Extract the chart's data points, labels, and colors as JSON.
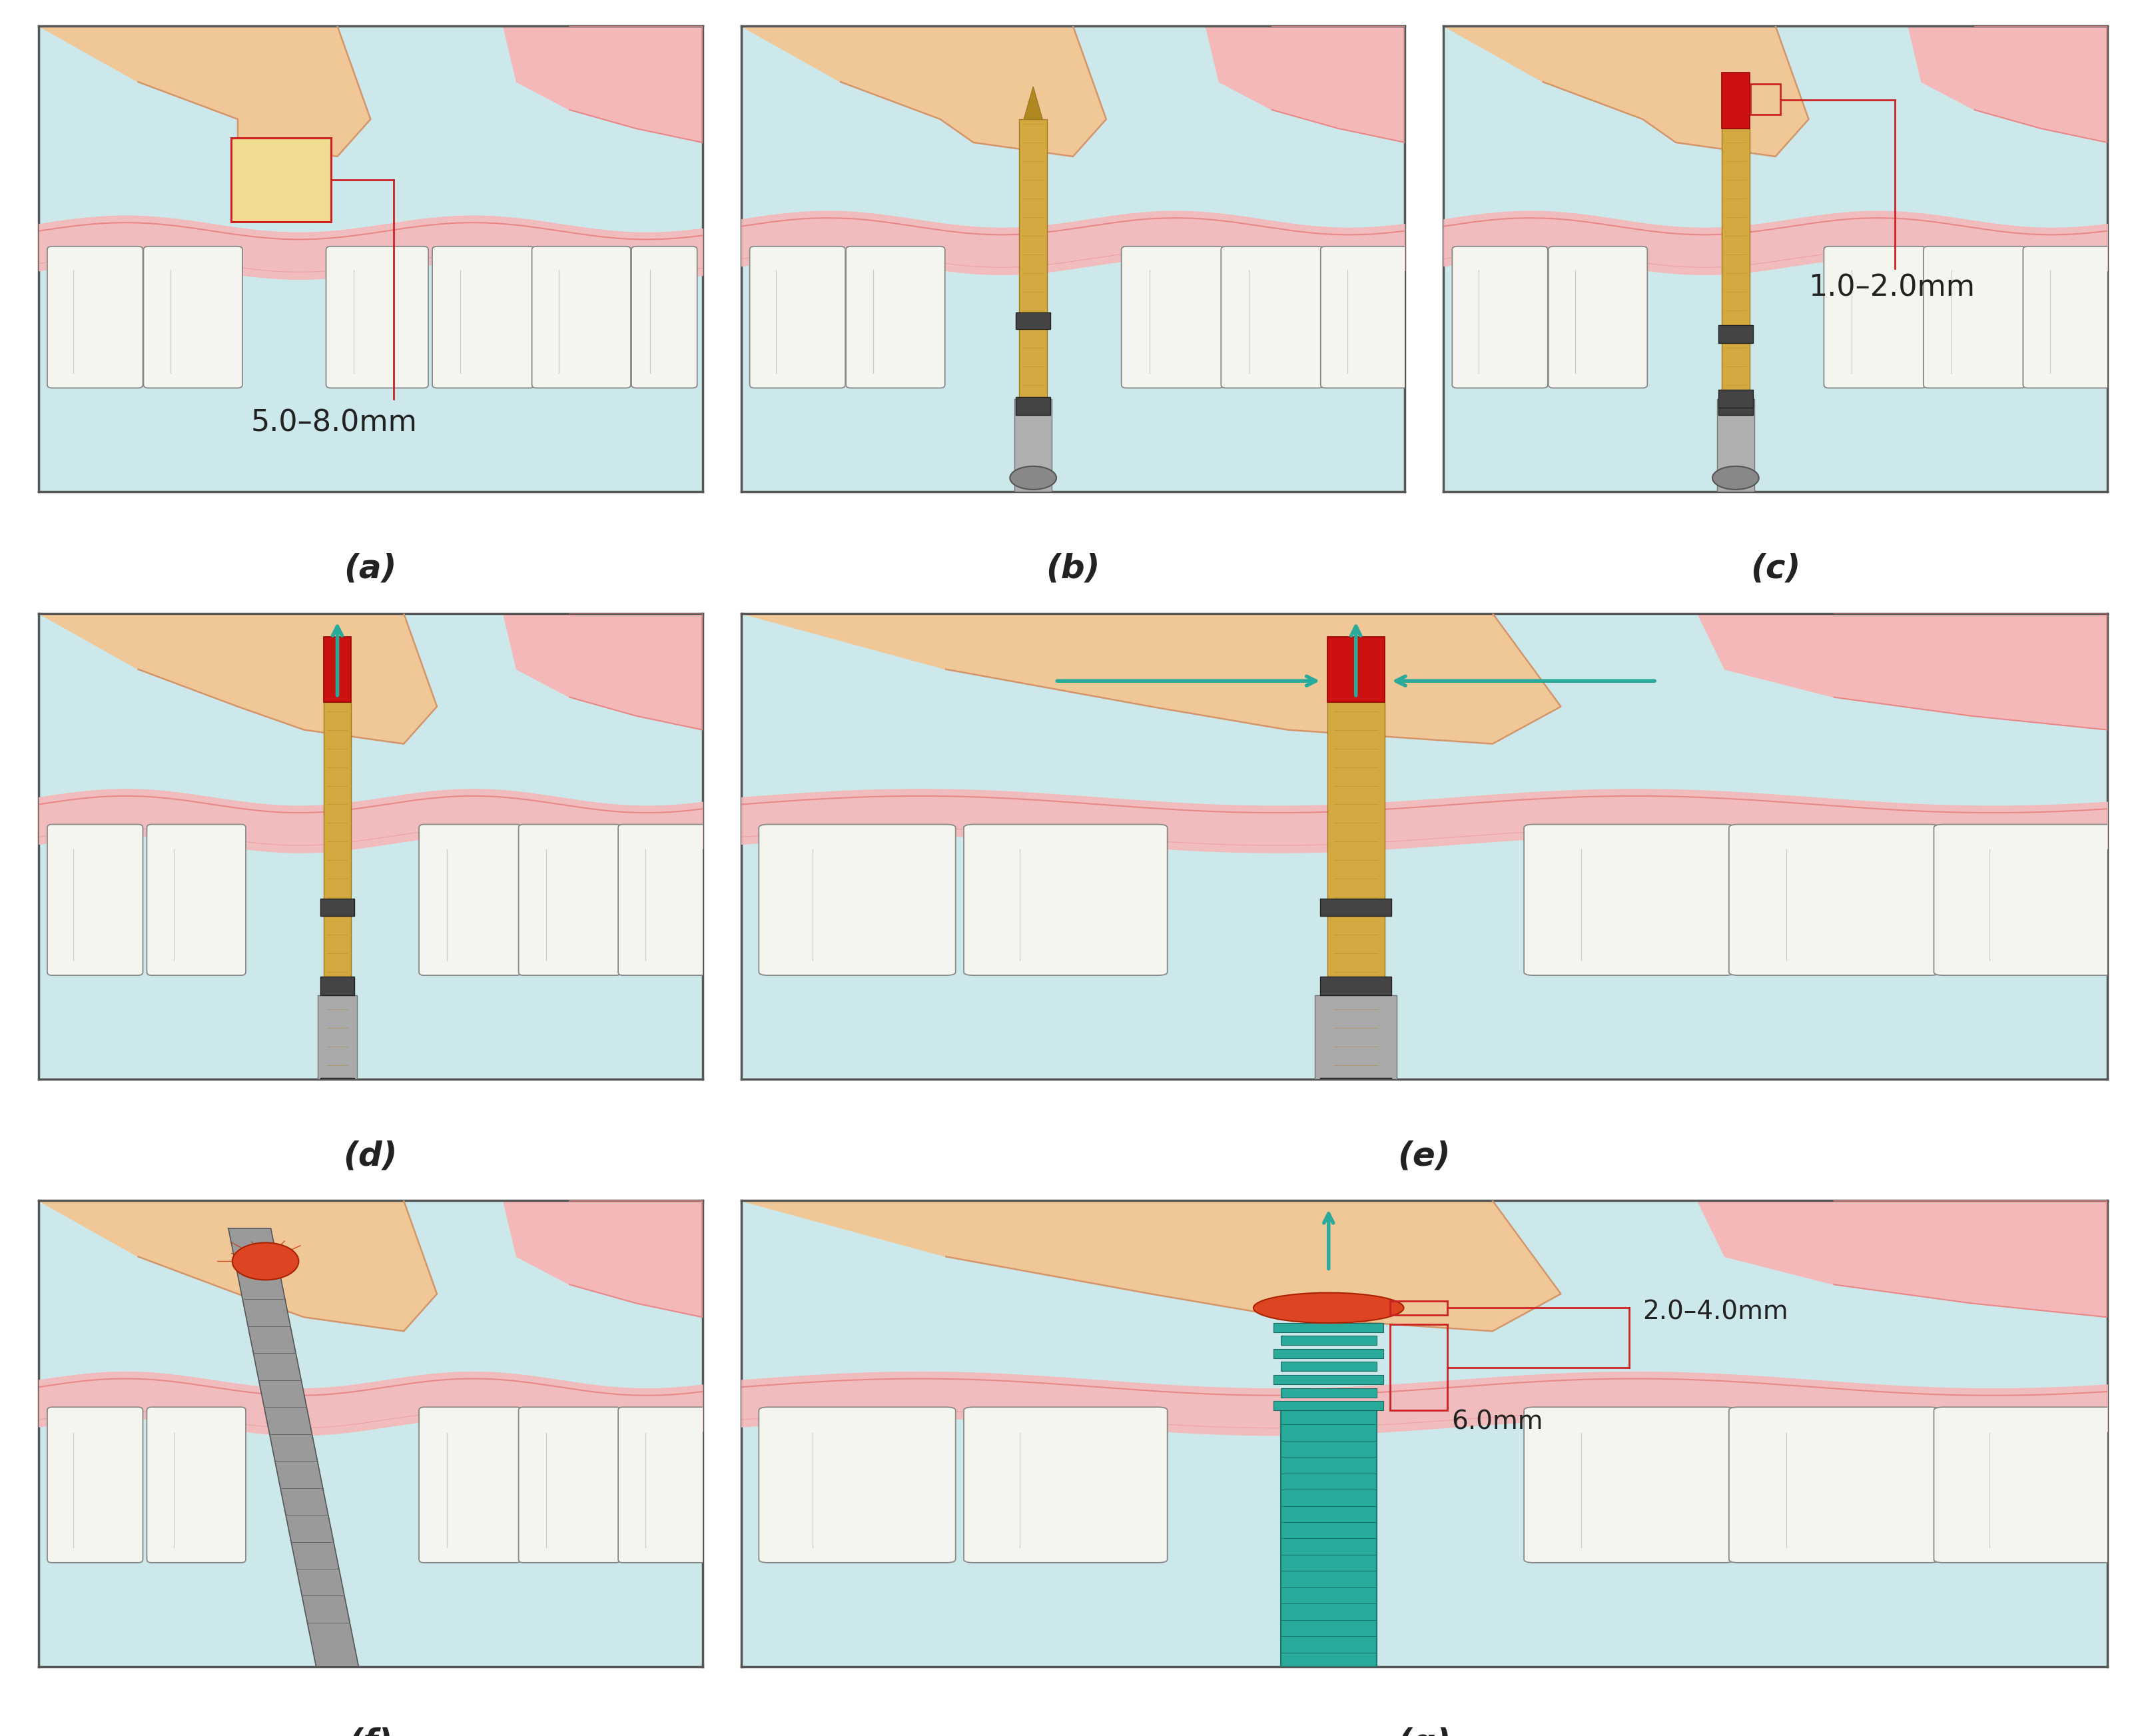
{
  "figure_width": 32.22,
  "figure_height": 26.06,
  "background_color": "#ffffff",
  "panel_bg": "#cde8ea",
  "gum_pink_light": "#f5b8b8",
  "gum_pink_dark": "#e88888",
  "gum_pink_fill": "#f2a8a8",
  "palate_fill": "#f0c898",
  "palate_edge": "#d4956a",
  "tooth_fill": "#f5f5f0",
  "tooth_edge": "#888888",
  "gold_fill": "#d4aa40",
  "gold_edge": "#a07820",
  "gold_dark": "#b08820",
  "gray_fill": "#aaaaaa",
  "gray_dark": "#666666",
  "band_fill": "#444444",
  "red_bone": "#cc2222",
  "teal": "#2aaa9a",
  "annotation_color": "#cc2222",
  "label_fontsize": 36,
  "annot_fontsize": 32,
  "annotation_a": "5.0–8.0mm",
  "annotation_c": "1.0–2.0mm",
  "annotation_g1": "2.0–4.0mm",
  "annotation_g2": "6.0mm"
}
